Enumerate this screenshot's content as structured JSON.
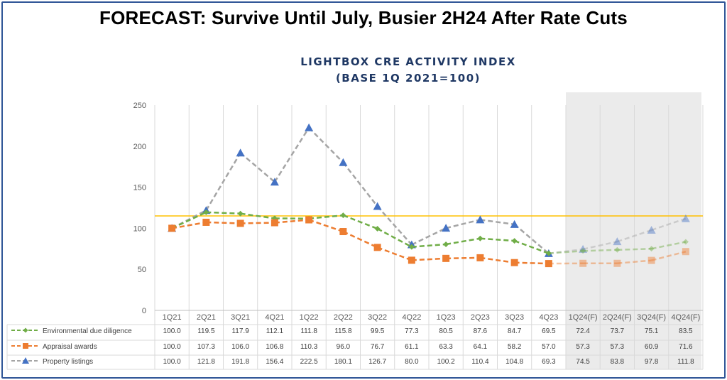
{
  "headline": "FORECAST: Survive Until July, Busier 2H24 After Rate Cuts",
  "chart_data": {
    "type": "line",
    "title": [
      "LIGHTBOX CRE ACTIVITY INDEX",
      "(BASE 1Q 2021=100)"
    ],
    "categories": [
      "1Q21",
      "2Q21",
      "3Q21",
      "4Q21",
      "1Q22",
      "2Q22",
      "3Q22",
      "4Q22",
      "1Q23",
      "2Q23",
      "3Q23",
      "4Q23",
      "1Q24(F)",
      "2Q24(F)",
      "3Q24(F)",
      "4Q24(F)"
    ],
    "forecast_start_index": 12,
    "ylim": [
      0,
      250
    ],
    "yticks": [
      0,
      50,
      100,
      150,
      200,
      250
    ],
    "grid": "vertical",
    "reference_line": 115,
    "data_table": true,
    "series": [
      {
        "name": "Environmental due diligence",
        "values": [
          100.0,
          119.5,
          117.9,
          112.1,
          111.8,
          115.8,
          99.5,
          77.3,
          80.5,
          87.6,
          84.7,
          69.5,
          72.4,
          73.7,
          75.1,
          83.5
        ],
        "color": "#70ad47",
        "marker": "diamond"
      },
      {
        "name": "Appraisal awards",
        "values": [
          100.0,
          107.3,
          106.0,
          106.8,
          110.3,
          96.0,
          76.7,
          61.1,
          63.3,
          64.1,
          58.2,
          57.0,
          57.3,
          57.3,
          60.9,
          71.6
        ],
        "color": "#ed7d31",
        "marker": "square"
      },
      {
        "name": "Property listings",
        "values": [
          100.0,
          121.8,
          191.8,
          156.4,
          222.5,
          180.1,
          126.7,
          80.0,
          100.2,
          110.4,
          104.8,
          69.3,
          74.5,
          83.8,
          97.8,
          111.8
        ],
        "color": "#4472c4",
        "marker": "triangle"
      }
    ],
    "line_color": "#a5a5a5",
    "reference_color": "#ffc000",
    "forecast_shade": "#ebebeb"
  }
}
